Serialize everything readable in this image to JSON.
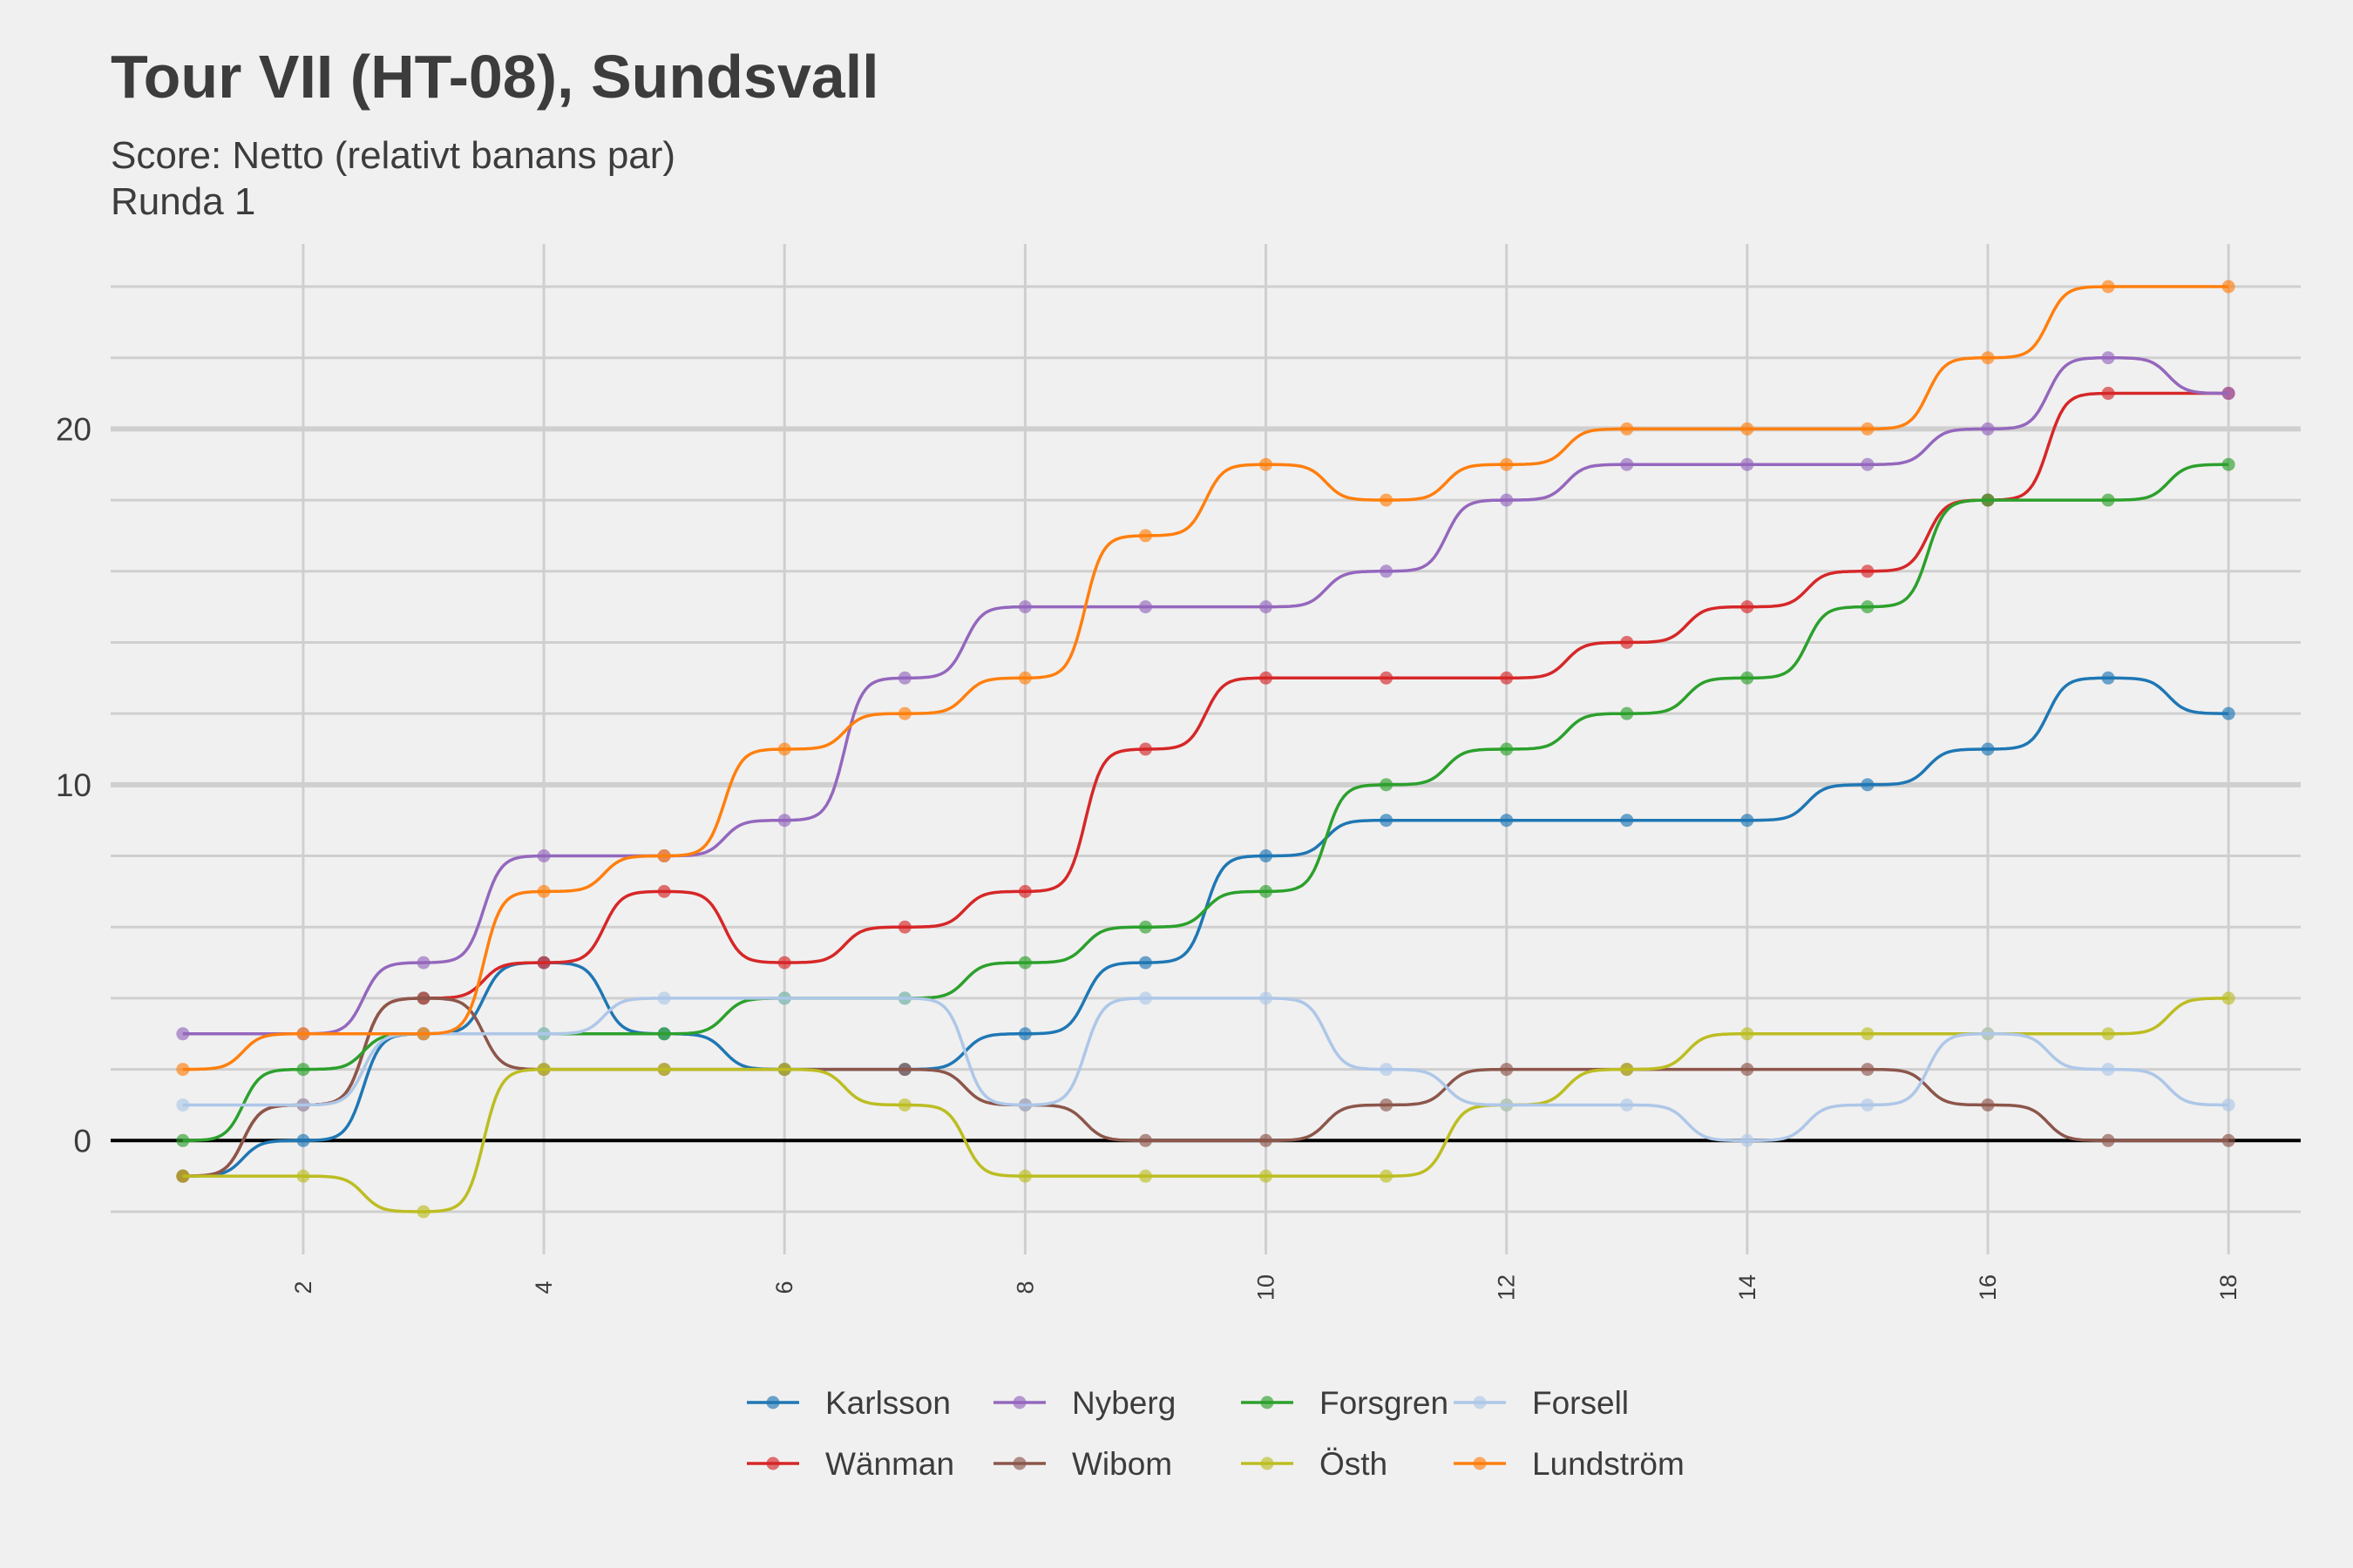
{
  "chart_data": {
    "type": "line",
    "title": "Tour VII (HT-08), Sundsvall",
    "subtitle": "Score: Netto (relativt banans par)",
    "caption_line": "Runda 1",
    "xlabel": "",
    "ylabel": "",
    "x": [
      1,
      2,
      3,
      4,
      5,
      6,
      7,
      8,
      9,
      10,
      11,
      12,
      13,
      14,
      15,
      16,
      17,
      18
    ],
    "xlim": [
      0.4,
      18.6
    ],
    "ylim": [
      -3.2,
      25.2
    ],
    "x_ticks": [
      2,
      4,
      6,
      8,
      10,
      12,
      14,
      16,
      18
    ],
    "y_ticks": [
      0,
      10,
      20
    ],
    "grid": true,
    "legend_position": "bottom",
    "series": [
      {
        "name": "Karlsson",
        "color": "#1f77b4",
        "values": [
          -1,
          0,
          3,
          5,
          3,
          2,
          2,
          3,
          5,
          8,
          9,
          9,
          9,
          9,
          10,
          11,
          13,
          12
        ]
      },
      {
        "name": "Wänman",
        "color": "#d62728",
        "values": [
          -1,
          1,
          4,
          5,
          7,
          5,
          6,
          7,
          11,
          13,
          13,
          13,
          14,
          15,
          16,
          18,
          21,
          21
        ]
      },
      {
        "name": "Nyberg",
        "color": "#9467bd",
        "values": [
          3,
          3,
          5,
          8,
          8,
          9,
          13,
          15,
          15,
          15,
          16,
          18,
          19,
          19,
          19,
          20,
          22,
          21
        ]
      },
      {
        "name": "Wibom",
        "color": "#8c564b",
        "values": [
          -1,
          1,
          4,
          2,
          2,
          2,
          2,
          1,
          0,
          0,
          1,
          2,
          2,
          2,
          2,
          1,
          0,
          0
        ]
      },
      {
        "name": "Forsgren",
        "color": "#2ca02c",
        "values": [
          0,
          2,
          3,
          3,
          3,
          4,
          4,
          5,
          6,
          7,
          10,
          11,
          12,
          13,
          15,
          18,
          18,
          19
        ]
      },
      {
        "name": "Östh",
        "color": "#bcbd22",
        "values": [
          -1,
          -1,
          -2,
          2,
          2,
          2,
          1,
          -1,
          -1,
          -1,
          -1,
          1,
          2,
          3,
          3,
          3,
          3,
          4
        ]
      },
      {
        "name": "Forsell",
        "color": "#aec7e8",
        "values": [
          1,
          1,
          3,
          3,
          4,
          4,
          4,
          1,
          4,
          4,
          2,
          1,
          1,
          0,
          1,
          3,
          2,
          1
        ]
      },
      {
        "name": "Lundström",
        "color": "#ff7f0e",
        "values": [
          2,
          3,
          3,
          7,
          8,
          11,
          12,
          13,
          17,
          19,
          18,
          19,
          20,
          20,
          20,
          22,
          24,
          24
        ]
      }
    ]
  }
}
